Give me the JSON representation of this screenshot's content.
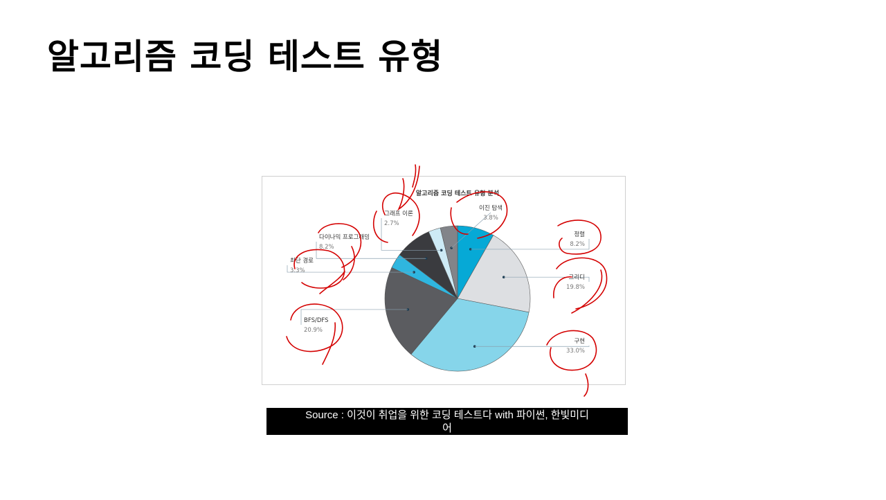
{
  "slide": {
    "title": "알고리즘 코딩 테스트 유형"
  },
  "chart_data": {
    "type": "pie",
    "title": "알고리즘 코딩 테스트 유형 분석",
    "unit": "%",
    "slices": [
      {
        "label": "정렬",
        "value_text": "8.2%",
        "value": 8.2,
        "color": "#06a9d6"
      },
      {
        "label": "그리디",
        "value_text": "19.8%",
        "value": 19.8,
        "color": "#dddfe2"
      },
      {
        "label": "구현",
        "value_text": "33.0%",
        "value": 33.0,
        "color": "#86d5ea"
      },
      {
        "label": "BFS/DFS",
        "value_text": "20.9%",
        "value": 20.9,
        "color": "#5b5c60"
      },
      {
        "label": "최단 경로",
        "value_text": "3.3%",
        "value": 3.3,
        "color": "#2fb6df"
      },
      {
        "label": "다이나믹 프로그래밍",
        "value_text": "8.2%",
        "value": 8.2,
        "color": "#3a3b3f"
      },
      {
        "label": "그래프 이론",
        "value_text": "2.7%",
        "value": 2.7,
        "color": "#cdeaf5"
      },
      {
        "label": "이진 탐색",
        "value_text": "3.8%",
        "value": 3.8,
        "color": "#828489"
      }
    ]
  },
  "source": {
    "line1": "Source : 이것이 취업을 위한 코딩 테스트다 with 파이썬, 한빛미디",
    "line2": "어"
  },
  "colors": {
    "annotation": "#d40000",
    "leader": "#8aa0b0"
  }
}
